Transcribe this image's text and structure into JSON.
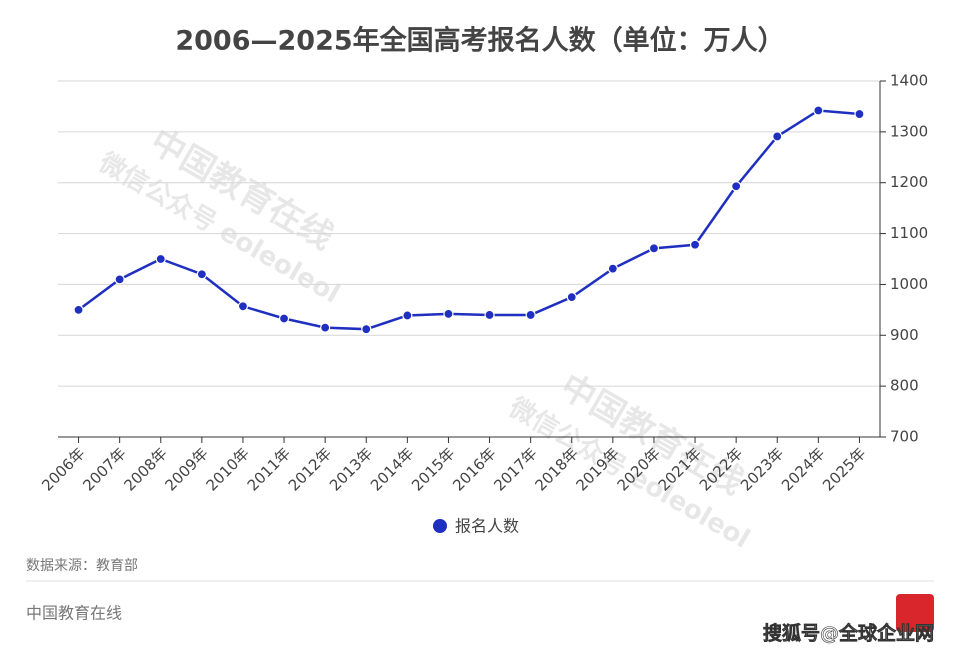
{
  "chart_data": {
    "type": "line",
    "title": "2006—2025年全国高考报名人数（单位：万人）",
    "categories": [
      "2006年",
      "2007年",
      "2008年",
      "2009年",
      "2010年",
      "2011年",
      "2012年",
      "2013年",
      "2014年",
      "2015年",
      "2016年",
      "2017年",
      "2018年",
      "2019年",
      "2020年",
      "2021年",
      "2022年",
      "2023年",
      "2024年",
      "2025年"
    ],
    "series": [
      {
        "name": "报名人数",
        "color": "#1f2fbf",
        "values": [
          950,
          1010,
          1050,
          1020,
          957,
          933,
          915,
          912,
          939,
          942,
          940,
          940,
          975,
          1031,
          1071,
          1078,
          1193,
          1291,
          1342,
          1335
        ]
      }
    ],
    "ylim": [
      700,
      1400
    ],
    "yticks": [
      700,
      800,
      900,
      1000,
      1100,
      1200,
      1300,
      1400
    ],
    "grid": true,
    "legend": "bottom",
    "source": "数据来源：教育部",
    "footer": "中国教育在线",
    "credit": "搜狐号@全球企业网",
    "watermarks": [
      "中国教育在线",
      "微信公众号 eoleoleol"
    ]
  }
}
